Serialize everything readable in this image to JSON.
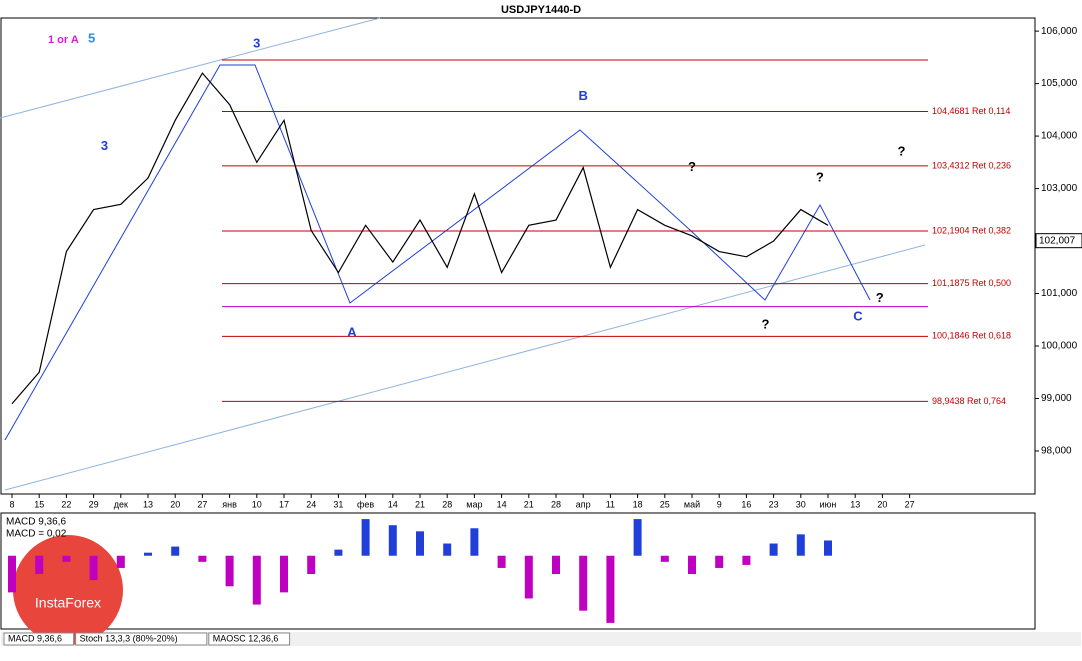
{
  "chart_data": {
    "type": "line",
    "title": "USDJPY1440-D",
    "legend_texts": [
      {
        "text": "1 or A",
        "color": "#d21fd2"
      },
      {
        "text": "5",
        "color": "#2a8fd6"
      }
    ],
    "categories": [
      "8",
      "15",
      "22",
      "29",
      "дек",
      "13",
      "20",
      "27",
      "янв",
      "10",
      "17",
      "24",
      "31",
      "фев",
      "14",
      "21",
      "28",
      "мар",
      "14",
      "21",
      "28",
      "апр",
      "11",
      "18",
      "25",
      "май",
      "9",
      "16",
      "23",
      "30",
      "июн",
      "13",
      "20",
      "27"
    ],
    "series": [
      {
        "name": "USDJPY",
        "color": "#000000",
        "values": [
          98.9,
          99.5,
          101.8,
          102.6,
          102.7,
          103.2,
          104.3,
          105.2,
          104.6,
          103.5,
          104.3,
          102.2,
          101.4,
          102.3,
          101.6,
          102.4,
          101.5,
          102.9,
          101.4,
          102.3,
          102.4,
          103.4,
          101.5,
          102.6,
          102.3,
          102.1,
          101.8,
          101.7,
          102.0,
          102.6,
          102.3,
          null,
          null,
          null
        ]
      }
    ],
    "ylim": [
      97.18,
      106.25
    ],
    "yticks": [
      {
        "value": 106,
        "label": "106,000"
      },
      {
        "value": 105,
        "label": "105,000"
      },
      {
        "value": 104,
        "label": "104,000"
      },
      {
        "value": 103,
        "label": "103,000"
      },
      {
        "value": 102,
        "label": "102,000"
      },
      {
        "value": 101,
        "label": "101,000"
      },
      {
        "value": 100,
        "label": "100,000"
      },
      {
        "value": 99,
        "label": "99,000"
      },
      {
        "value": 98,
        "label": "98,000"
      }
    ],
    "last_price": {
      "value": 102.007,
      "label": "102,007"
    },
    "levels": [
      {
        "value": 105.45,
        "color": "#c00000"
      },
      {
        "value": 104.4681,
        "label": "104,4681 Ret 0,114",
        "color": "#c00000"
      },
      {
        "value": 103.4312,
        "label": "103,4312 Ret 0,236",
        "color": "#c00000"
      },
      {
        "value": 102.1904,
        "label": "102,1904 Ret 0,382",
        "color": "#c00000"
      },
      {
        "value": 101.1875,
        "label": "101,1875 Ret 0,500",
        "color": "#c00000"
      },
      {
        "value": 100.75,
        "color": "#c000c0"
      },
      {
        "value": 100.1846,
        "label": "100,1846 Ret 0,618",
        "color": "#c00000"
      },
      {
        "value": 98.9438,
        "label": "98,9438 Ret 0,764",
        "color": "#c00000"
      }
    ],
    "annotations": [
      {
        "text": "A",
        "x": 12.5,
        "y": 100.25,
        "color": "#1f3fd8"
      },
      {
        "text": "B",
        "x": 21.0,
        "y": 104.75,
        "color": "#1f3fd8"
      },
      {
        "text": "C",
        "x": 31.1,
        "y": 100.55,
        "color": "#1f3fd8"
      },
      {
        "text": "3",
        "x": 9.0,
        "y": 105.75,
        "color": "#1f3fd8"
      },
      {
        "text": "3",
        "x": 3.4,
        "y": 103.8,
        "color": "#1f3fd8"
      },
      {
        "text": "?",
        "x": 25.0,
        "y": 103.4,
        "color": "#000000"
      },
      {
        "text": "?",
        "x": 29.7,
        "y": 103.2,
        "color": "#000000"
      },
      {
        "text": "?",
        "x": 27.7,
        "y": 100.4,
        "color": "#000000"
      },
      {
        "text": "?",
        "x": 32.7,
        "y": 103.7,
        "color": "#000000"
      },
      {
        "text": "?",
        "x": 31.9,
        "y": 100.9,
        "color": "#000000"
      }
    ],
    "macd": {
      "label": "MACD 9,36,6",
      "value_text": "MACD = 0,02",
      "color_pos": "#1f3fd8",
      "color_neg": "#c000c0",
      "ylim": [
        -1.2,
        0.7
      ],
      "values": [
        -0.6,
        -0.3,
        -0.1,
        -0.4,
        -0.2,
        0.05,
        0.15,
        -0.1,
        -0.5,
        -0.8,
        -0.6,
        -0.3,
        0.1,
        0.6,
        0.5,
        0.4,
        0.2,
        0.45,
        -0.2,
        -0.7,
        -0.3,
        -0.9,
        -1.1,
        0.6,
        -0.1,
        -0.3,
        -0.2,
        -0.15,
        0.2,
        0.35,
        0.25,
        null,
        null,
        null
      ]
    },
    "tabs": [
      "MACD 9,36,6",
      "Stoch 13,3,3 (80%-20%)",
      "MAOSC 12,36,6"
    ],
    "logo": "InstaForex"
  }
}
